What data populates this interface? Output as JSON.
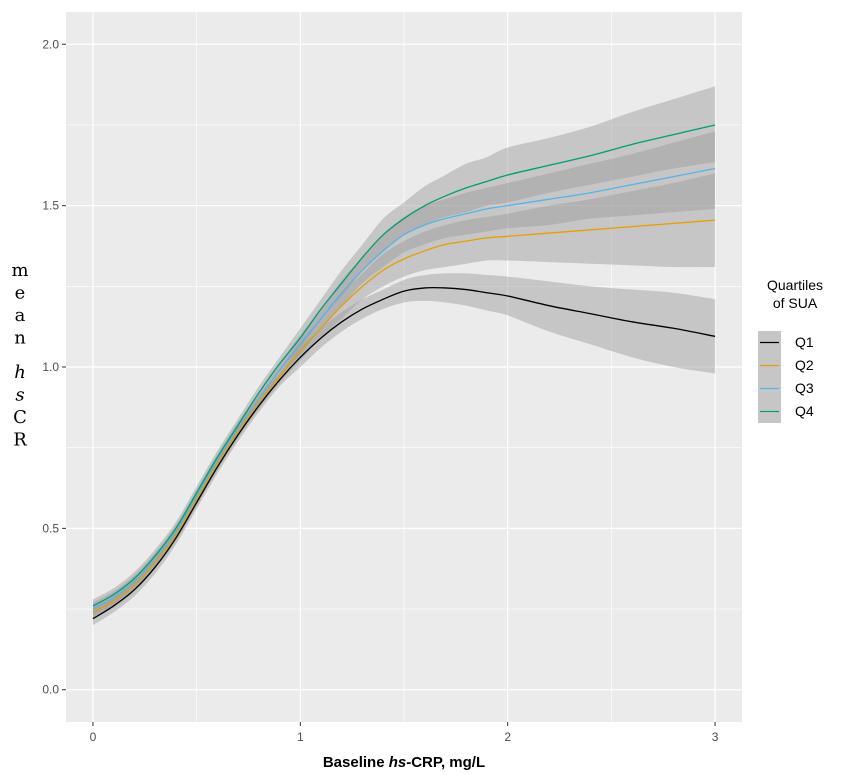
{
  "chart_data": {
    "type": "line",
    "xlabel": {
      "prefix": "Baseline ",
      "italic": "hs",
      "suffix": "-CRP, mg/L"
    },
    "ylabel": [
      {
        "text": "m",
        "italic": false
      },
      {
        "text": "e",
        "italic": false
      },
      {
        "text": "a",
        "italic": false
      },
      {
        "text": "n",
        "italic": false
      },
      {
        "text": "",
        "italic": false
      },
      {
        "text": "h",
        "italic": true
      },
      {
        "text": "s",
        "italic": true
      },
      {
        "text": "C",
        "italic": false
      },
      {
        "text": "R",
        "italic": false
      }
    ],
    "xlim": [
      -0.13,
      3.13
    ],
    "ylim": [
      -0.1,
      2.1
    ],
    "x_ticks": [
      0,
      1,
      2,
      3
    ],
    "x_tick_labels": [
      "0",
      "1",
      "2",
      "3"
    ],
    "y_ticks": [
      0.0,
      0.5,
      1.0,
      1.5,
      2.0
    ],
    "y_tick_labels": [
      "0.0",
      "0.5",
      "1.0",
      "1.5",
      "2.0"
    ],
    "grid": true,
    "panel_background": "#ebebeb",
    "band_color": "#999999",
    "band_opacity": 0.45,
    "legend": {
      "title_lines": [
        "Quartiles",
        "of SUA"
      ],
      "placement": "right"
    },
    "x": [
      0,
      0.1,
      0.2,
      0.3,
      0.4,
      0.5,
      0.6,
      0.7,
      0.8,
      0.9,
      1.0,
      1.1,
      1.2,
      1.3,
      1.4,
      1.5,
      1.6,
      1.7,
      1.8,
      1.9,
      2.0,
      2.2,
      2.4,
      2.6,
      2.8,
      3.0
    ],
    "series": [
      {
        "name": "Q1",
        "color": "#000000",
        "values": [
          0.22,
          0.26,
          0.31,
          0.38,
          0.47,
          0.58,
          0.69,
          0.79,
          0.88,
          0.96,
          1.03,
          1.09,
          1.14,
          1.18,
          1.21,
          1.235,
          1.245,
          1.245,
          1.24,
          1.23,
          1.22,
          1.19,
          1.165,
          1.14,
          1.12,
          1.095
        ],
        "lower": [
          0.2,
          0.24,
          0.29,
          0.36,
          0.45,
          0.56,
          0.67,
          0.77,
          0.86,
          0.94,
          1.0,
          1.06,
          1.11,
          1.15,
          1.18,
          1.2,
          1.205,
          1.2,
          1.19,
          1.175,
          1.16,
          1.11,
          1.07,
          1.03,
          1.0,
          0.98
        ],
        "upper": [
          0.24,
          0.28,
          0.33,
          0.4,
          0.49,
          0.6,
          0.71,
          0.81,
          0.9,
          0.98,
          1.06,
          1.12,
          1.17,
          1.21,
          1.24,
          1.27,
          1.285,
          1.29,
          1.29,
          1.285,
          1.28,
          1.265,
          1.25,
          1.24,
          1.23,
          1.21
        ]
      },
      {
        "name": "Q2",
        "color": "#e69f00",
        "values": [
          0.24,
          0.275,
          0.325,
          0.395,
          0.48,
          0.59,
          0.7,
          0.8,
          0.89,
          0.97,
          1.05,
          1.12,
          1.19,
          1.25,
          1.3,
          1.335,
          1.36,
          1.38,
          1.39,
          1.4,
          1.405,
          1.415,
          1.425,
          1.435,
          1.445,
          1.455
        ],
        "lower": [
          0.22,
          0.255,
          0.305,
          0.375,
          0.46,
          0.57,
          0.68,
          0.78,
          0.87,
          0.95,
          1.02,
          1.09,
          1.15,
          1.21,
          1.25,
          1.28,
          1.3,
          1.31,
          1.32,
          1.33,
          1.33,
          1.325,
          1.32,
          1.315,
          1.31,
          1.31
        ],
        "upper": [
          0.26,
          0.295,
          0.345,
          0.415,
          0.5,
          0.61,
          0.72,
          0.82,
          0.91,
          0.99,
          1.08,
          1.15,
          1.23,
          1.29,
          1.35,
          1.39,
          1.42,
          1.44,
          1.455,
          1.465,
          1.475,
          1.5,
          1.52,
          1.545,
          1.57,
          1.6
        ]
      },
      {
        "name": "Q3",
        "color": "#56b4e9",
        "values": [
          0.25,
          0.285,
          0.335,
          0.405,
          0.49,
          0.6,
          0.71,
          0.81,
          0.9,
          0.99,
          1.07,
          1.15,
          1.23,
          1.3,
          1.36,
          1.41,
          1.44,
          1.46,
          1.475,
          1.49,
          1.5,
          1.52,
          1.54,
          1.565,
          1.59,
          1.615
        ],
        "lower": [
          0.23,
          0.265,
          0.315,
          0.385,
          0.47,
          0.58,
          0.69,
          0.79,
          0.88,
          0.97,
          1.04,
          1.12,
          1.19,
          1.26,
          1.31,
          1.355,
          1.38,
          1.4,
          1.41,
          1.42,
          1.43,
          1.44,
          1.46,
          1.47,
          1.48,
          1.49
        ],
        "upper": [
          0.27,
          0.305,
          0.355,
          0.425,
          0.51,
          0.62,
          0.73,
          0.83,
          0.92,
          1.01,
          1.1,
          1.18,
          1.27,
          1.34,
          1.41,
          1.465,
          1.5,
          1.52,
          1.54,
          1.555,
          1.57,
          1.6,
          1.63,
          1.66,
          1.695,
          1.73
        ]
      },
      {
        "name": "Q4",
        "color": "#009e73",
        "values": [
          0.26,
          0.295,
          0.345,
          0.415,
          0.5,
          0.61,
          0.72,
          0.82,
          0.92,
          1.01,
          1.09,
          1.18,
          1.26,
          1.34,
          1.41,
          1.46,
          1.5,
          1.53,
          1.555,
          1.575,
          1.595,
          1.625,
          1.655,
          1.69,
          1.72,
          1.75
        ],
        "lower": [
          0.24,
          0.275,
          0.325,
          0.395,
          0.48,
          0.59,
          0.7,
          0.8,
          0.9,
          0.99,
          1.06,
          1.15,
          1.22,
          1.3,
          1.36,
          1.41,
          1.44,
          1.465,
          1.48,
          1.5,
          1.51,
          1.54,
          1.565,
          1.59,
          1.615,
          1.635
        ],
        "upper": [
          0.28,
          0.315,
          0.365,
          0.435,
          0.52,
          0.63,
          0.74,
          0.84,
          0.94,
          1.03,
          1.12,
          1.21,
          1.3,
          1.38,
          1.46,
          1.51,
          1.56,
          1.595,
          1.63,
          1.65,
          1.68,
          1.71,
          1.745,
          1.79,
          1.83,
          1.87
        ]
      }
    ]
  }
}
